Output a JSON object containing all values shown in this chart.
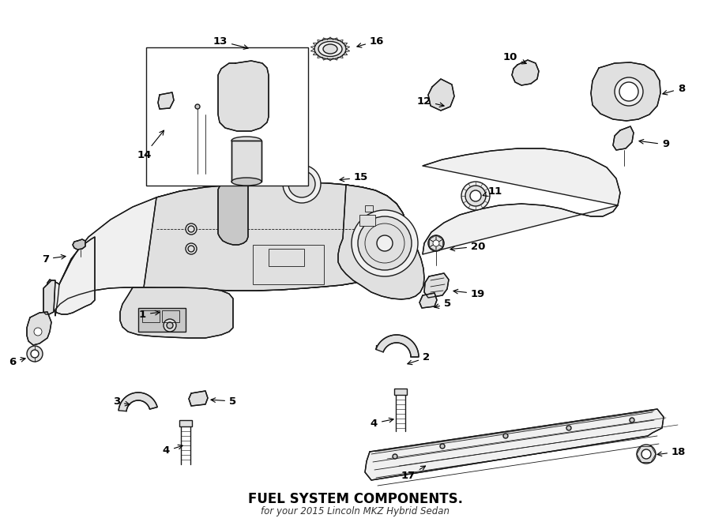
{
  "title": "FUEL SYSTEM COMPONENTS.",
  "subtitle": "for your 2015 Lincoln MKZ Hybrid Sedan",
  "background_color": "#ffffff",
  "line_color": "#1a1a1a",
  "fig_width": 9.0,
  "fig_height": 6.61,
  "dpi": 100,
  "lw_main": 1.0,
  "lw_thin": 0.6,
  "fill_light": "#f0f0f0",
  "fill_mid": "#e0e0e0",
  "fill_dark": "#c8c8c8",
  "labels": [
    [
      "1",
      185,
      398,
      206,
      395,
      "right"
    ],
    [
      "2",
      535,
      453,
      512,
      462,
      "left"
    ],
    [
      "3",
      152,
      509,
      168,
      513,
      "right"
    ],
    [
      "4",
      215,
      571,
      235,
      563,
      "right"
    ],
    [
      "4",
      478,
      536,
      502,
      530,
      "right"
    ],
    [
      "5",
      290,
      508,
      263,
      506,
      "left"
    ],
    [
      "5",
      562,
      385,
      546,
      390,
      "left"
    ],
    [
      "6",
      20,
      458,
      36,
      453,
      "right"
    ],
    [
      "7",
      62,
      328,
      87,
      324,
      "right"
    ],
    [
      "8",
      858,
      112,
      835,
      120,
      "left"
    ],
    [
      "9",
      838,
      183,
      805,
      178,
      "left"
    ],
    [
      "10",
      655,
      72,
      670,
      82,
      "right"
    ],
    [
      "11",
      618,
      242,
      610,
      248,
      "left"
    ],
    [
      "12",
      546,
      128,
      566,
      135,
      "right"
    ],
    [
      "13",
      288,
      52,
      318,
      62,
      "right"
    ],
    [
      "14",
      192,
      196,
      210,
      162,
      "right"
    ],
    [
      "15",
      448,
      225,
      426,
      228,
      "left"
    ],
    [
      "16",
      468,
      52,
      448,
      60,
      "left"
    ],
    [
      "17",
      526,
      603,
      542,
      588,
      "right"
    ],
    [
      "18",
      850,
      572,
      828,
      576,
      "left"
    ],
    [
      "19",
      596,
      372,
      570,
      368,
      "left"
    ],
    [
      "20",
      596,
      312,
      566,
      316,
      "left"
    ]
  ]
}
